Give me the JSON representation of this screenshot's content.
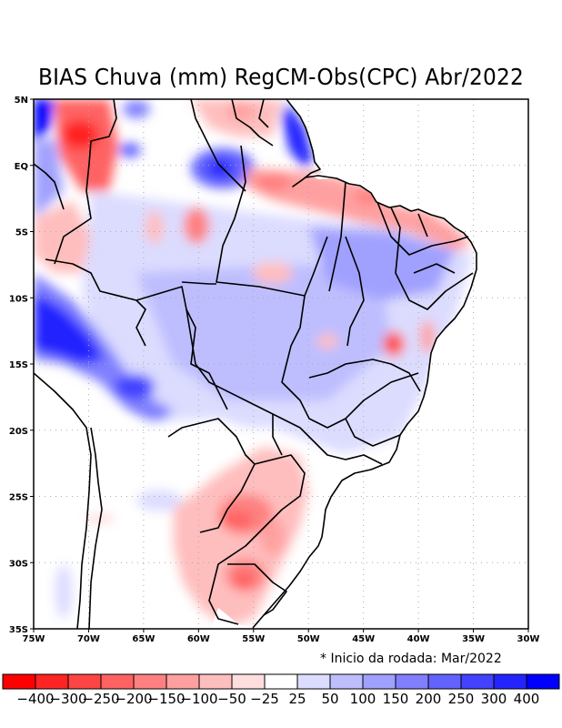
{
  "title": "BIAS Chuva (mm) RegCM-Obs(CPC) Abr/2022",
  "note": "* Inicio da rodada: Mar/2022",
  "map": {
    "lon_range": [
      -75,
      -30
    ],
    "lat_range": [
      -35,
      5
    ],
    "lon_ticks": [
      "75W",
      "70W",
      "65W",
      "60W",
      "55W",
      "50W",
      "45W",
      "40W",
      "35W",
      "30W"
    ],
    "lat_ticks": [
      "5N",
      "EQ",
      "5S",
      "10S",
      "15S",
      "20S",
      "25S",
      "30S",
      "35S"
    ],
    "gridlines": "dotted"
  },
  "colorbar": {
    "labels": [
      "-400",
      "-300",
      "-250",
      "-200",
      "-150",
      "-100",
      "-50",
      "-25",
      "25",
      "50",
      "100",
      "150",
      "200",
      "250",
      "300",
      "400"
    ],
    "colors": [
      "#ff0000",
      "#ff2424",
      "#ff4444",
      "#ff6262",
      "#ff8080",
      "#ffa0a0",
      "#ffbebe",
      "#ffdede",
      "#ffffff",
      "#dcdcff",
      "#bebeff",
      "#a0a0ff",
      "#8080ff",
      "#6262ff",
      "#4242ff",
      "#2424ff",
      "#0000ff"
    ]
  },
  "regions": [
    {
      "name": "NW Amazon positive",
      "lon": -74,
      "lat": 4,
      "value": 400
    },
    {
      "name": "Roraima/Venezuela negative",
      "lon": -71,
      "lat": 2.5,
      "value": -300
    },
    {
      "name": "Amapa positive",
      "lon": -51.5,
      "lat": 2.5,
      "value": 400
    },
    {
      "name": "Central Amazon positive",
      "lon": -57,
      "lat": 0,
      "value": 300
    },
    {
      "name": "Amazonas negative",
      "lon": -60,
      "lat": -4.5,
      "value": -150
    },
    {
      "name": "Peru/Bolivia positive",
      "lon": -73,
      "lat": -12,
      "value": 400
    },
    {
      "name": "Bolivia positive",
      "lon": -65,
      "lat": -17,
      "value": 300
    },
    {
      "name": "Bahia negative",
      "lon": -42.5,
      "lat": -13,
      "value": -250
    },
    {
      "name": "Parana/Paraguay negative",
      "lon": -55,
      "lat": -26,
      "value": -200
    },
    {
      "name": "Rio Grande do Sul negative",
      "lon": -55.5,
      "lat": -31,
      "value": -200
    },
    {
      "name": "North coast negative",
      "lon": -45,
      "lat": -2,
      "value": -100
    }
  ]
}
